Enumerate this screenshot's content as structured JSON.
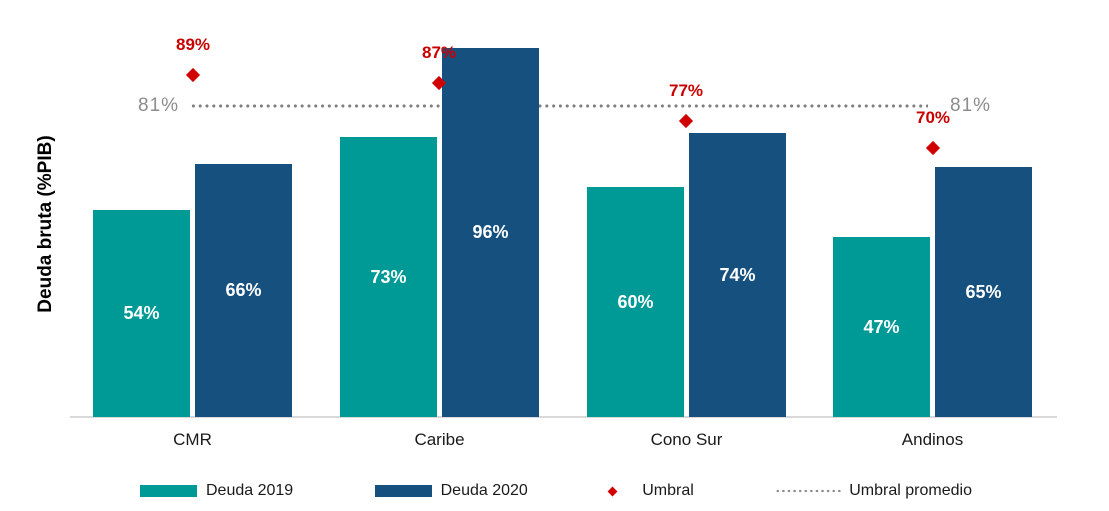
{
  "chart_data": {
    "type": "bar",
    "title": "",
    "ylabel": "Deuda bruta (%PIB)",
    "categories": [
      "CMR",
      "Caribe",
      "Cono Sur",
      "Andinos"
    ],
    "series": [
      {
        "name": "Deuda 2019",
        "color": "#009a96",
        "values": [
          54,
          73,
          60,
          47
        ]
      },
      {
        "name": "Deuda 2020",
        "color": "#16507e",
        "values": [
          66,
          96,
          74,
          65
        ]
      }
    ],
    "umbral": {
      "name": "Umbral",
      "marker": "diamond",
      "color": "#d10000",
      "label_color": "#c90000",
      "values": [
        89,
        87,
        77,
        70
      ]
    },
    "umbral_promedio": {
      "name": "Umbral promedio",
      "value": 81,
      "label": "81%",
      "line_style": "dotted",
      "dot_color": "#7f7f7f",
      "label_color": "#8c8c8c"
    },
    "value_suffix": "%",
    "bar_value_label_color": "#ffffff",
    "ylim": [
      0,
      100
    ],
    "grid": false,
    "legend_position": "bottom",
    "axis_line_color": "#d9d9d9"
  }
}
